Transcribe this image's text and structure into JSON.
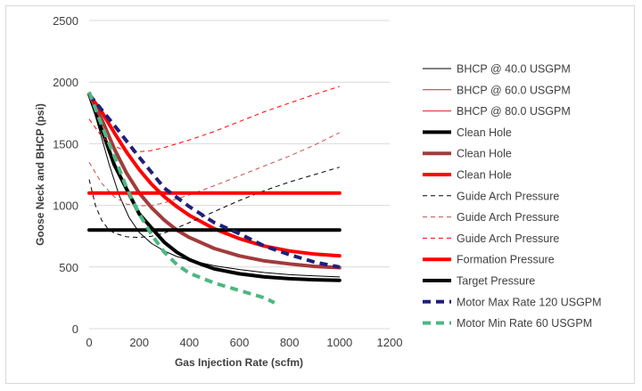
{
  "chart_data": {
    "type": "line",
    "xlabel": "Gas Injection Rate (scfm)",
    "ylabel": "Goose Neck and BHCP (psi)",
    "xlim": [
      0,
      1200
    ],
    "ylim": [
      0,
      2500
    ],
    "xticks": [
      0,
      200,
      400,
      600,
      800,
      1000,
      1200
    ],
    "yticks": [
      0,
      500,
      1000,
      1500,
      2000,
      2500
    ],
    "grid": "horizontal",
    "legend_position": "right",
    "series": [
      {
        "name": "BHCP @ 40.0 USGPM",
        "color": "#000000",
        "width": 1,
        "dash": "",
        "x": [
          0,
          40,
          80,
          120,
          160,
          200,
          250,
          300,
          350,
          400,
          500,
          600,
          700,
          800,
          900,
          1000
        ],
        "y": [
          1900,
          1620,
          1330,
          1080,
          900,
          780,
          690,
          630,
          585,
          555,
          510,
          480,
          455,
          438,
          428,
          420
        ]
      },
      {
        "name": "BHCP @ 60.0 USGPM",
        "color": "#a23b3b",
        "width": 1,
        "dash": "",
        "x": [
          0,
          50,
          100,
          150,
          200,
          250,
          300,
          350,
          400,
          500,
          600,
          700,
          800,
          900,
          1000
        ],
        "y": [
          1900,
          1700,
          1460,
          1260,
          1100,
          980,
          880,
          800,
          740,
          650,
          590,
          550,
          525,
          505,
          495
        ]
      },
      {
        "name": "BHCP @ 80.0 USGPM",
        "color": "#e31a1c",
        "width": 1,
        "dash": "",
        "x": [
          0,
          50,
          100,
          150,
          200,
          250,
          300,
          350,
          400,
          500,
          600,
          700,
          800,
          900,
          1000
        ],
        "y": [
          1900,
          1760,
          1590,
          1430,
          1290,
          1170,
          1070,
          990,
          920,
          810,
          730,
          670,
          630,
          605,
          590
        ]
      },
      {
        "name": "Clean Hole",
        "color": "#000000",
        "width": 4,
        "dash": "",
        "x": [
          0,
          100,
          200,
          300,
          350,
          400,
          450,
          500,
          600,
          700,
          800,
          900,
          1000
        ],
        "y": [
          1900,
          1330,
          930,
          700,
          620,
          560,
          520,
          485,
          445,
          420,
          405,
          397,
          392
        ]
      },
      {
        "name": "Clean Hole",
        "color": "#a23b3b",
        "width": 4,
        "dash": "",
        "x": [
          0,
          50,
          100,
          150,
          200,
          250,
          300,
          350,
          400,
          500,
          600,
          700,
          800,
          900,
          1000
        ],
        "y": [
          1900,
          1700,
          1460,
          1260,
          1100,
          980,
          880,
          800,
          740,
          650,
          590,
          550,
          525,
          505,
          495
        ]
      },
      {
        "name": "Clean Hole",
        "color": "#ff0000",
        "width": 4,
        "dash": "",
        "x": [
          0,
          50,
          100,
          150,
          200,
          250,
          300,
          350,
          400,
          500,
          600,
          700,
          800,
          900,
          1000
        ],
        "y": [
          1900,
          1760,
          1590,
          1430,
          1290,
          1170,
          1070,
          990,
          920,
          810,
          730,
          670,
          630,
          605,
          590
        ]
      },
      {
        "name": "Guide Arch Pressure",
        "color": "#000000",
        "width": 1,
        "dash": "5,4",
        "x": [
          0,
          25,
          50,
          75,
          100,
          150,
          200,
          250,
          300,
          400,
          500,
          600,
          700,
          800,
          900,
          1000
        ],
        "y": [
          1210,
          1000,
          880,
          810,
          775,
          745,
          740,
          750,
          775,
          860,
          950,
          1040,
          1120,
          1190,
          1250,
          1310
        ]
      },
      {
        "name": "Guide Arch Pressure",
        "color": "#c0504d",
        "width": 1,
        "dash": "5,4",
        "x": [
          0,
          50,
          100,
          150,
          200,
          250,
          300,
          400,
          500,
          600,
          700,
          800,
          900,
          1000
        ],
        "y": [
          1350,
          1180,
          1070,
          1010,
          995,
          1000,
          1020,
          1085,
          1160,
          1240,
          1320,
          1400,
          1490,
          1590
        ]
      },
      {
        "name": "Guide Arch Pressure",
        "color": "#ff0000",
        "width": 1,
        "dash": "5,4",
        "x": [
          0,
          50,
          100,
          150,
          200,
          250,
          300,
          400,
          500,
          600,
          700,
          800,
          900,
          1000
        ],
        "y": [
          1700,
          1560,
          1480,
          1440,
          1435,
          1445,
          1470,
          1530,
          1600,
          1680,
          1760,
          1830,
          1900,
          1965
        ]
      },
      {
        "name": "Formation Pressure",
        "color": "#ff0000",
        "width": 4,
        "dash": "",
        "x": [
          0,
          1000
        ],
        "y": [
          1100,
          1100
        ]
      },
      {
        "name": "Target Pressure",
        "color": "#000000",
        "width": 4,
        "dash": "",
        "x": [
          0,
          1000
        ],
        "y": [
          800,
          800
        ]
      },
      {
        "name": "Motor Max Rate 120 USGPM",
        "color": "#1f1f7a",
        "width": 4,
        "dash": "9,6",
        "x": [
          0,
          100,
          200,
          300,
          400,
          500,
          600,
          700,
          800,
          900,
          1000
        ],
        "y": [
          1900,
          1650,
          1390,
          1140,
          990,
          860,
          770,
          670,
          600,
          540,
          500
        ]
      },
      {
        "name": "Motor Min Rate 60 USGPM",
        "color": "#4cb882",
        "width": 4,
        "dash": "9,6",
        "x": [
          0,
          50,
          100,
          150,
          200,
          250,
          300,
          350,
          400,
          500,
          600,
          700,
          740
        ],
        "y": [
          1920,
          1650,
          1400,
          1140,
          930,
          760,
          620,
          520,
          450,
          370,
          310,
          250,
          210
        ]
      }
    ]
  }
}
